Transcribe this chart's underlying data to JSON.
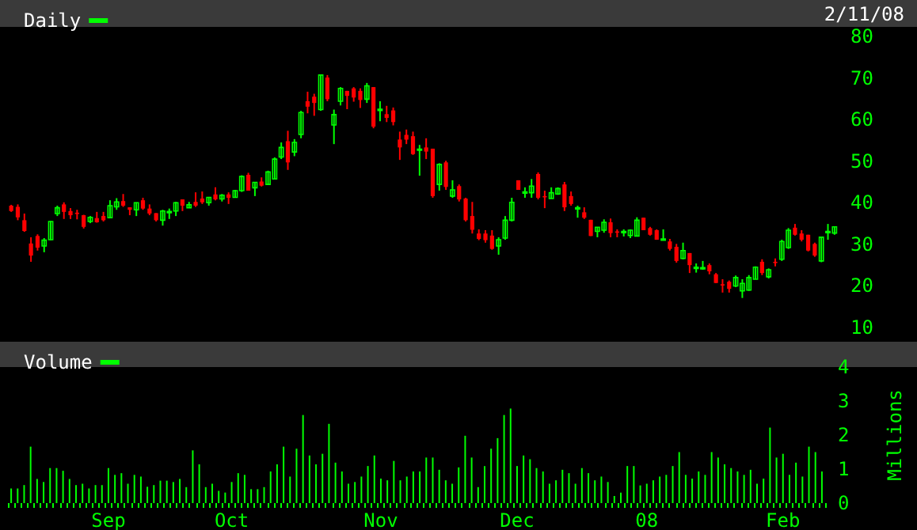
{
  "chart_data": [
    {
      "type": "candlestick",
      "legend": "top left",
      "tick_labels": "y",
      "ylim": [
        10,
        80
      ],
      "yticks": [
        10,
        20,
        30,
        40,
        50,
        60,
        70,
        80
      ],
      "annotations": [
        "2/11/08"
      ],
      "categories": [
        null,
        null,
        null,
        null,
        null,
        null,
        null,
        null,
        null,
        null,
        null,
        null,
        null,
        null,
        null,
        null,
        null,
        null,
        null,
        null,
        null,
        null,
        null,
        null,
        null,
        null,
        null,
        null,
        null,
        null,
        null,
        null,
        null,
        null,
        null,
        null,
        null,
        null,
        null,
        null,
        null,
        null,
        null,
        null,
        null,
        null,
        null,
        null,
        null,
        null,
        null,
        null,
        null,
        null,
        null,
        null,
        null,
        null,
        null,
        null,
        null,
        null,
        null,
        null,
        null,
        null,
        null,
        null,
        null,
        null,
        null,
        null,
        null,
        null,
        null,
        null,
        null,
        null,
        null,
        null,
        null,
        null,
        null,
        null,
        null,
        null,
        null,
        null,
        null,
        null,
        null,
        null,
        null,
        null,
        null,
        null,
        null,
        null,
        null,
        null,
        null,
        null,
        null,
        null,
        null,
        null,
        null,
        null,
        null,
        null,
        null,
        null,
        null,
        null,
        null,
        null,
        null,
        null,
        null,
        null,
        null,
        null,
        null,
        null,
        null,
        null
      ],
      "series": [
        {
          "name": "Daily",
          "color": "#00ff00",
          "colors": [
            "#ff0000",
            "#ff0000",
            "#ff0000",
            "#ff0000",
            "#ff0000",
            "#00ff00",
            "#00ff00",
            "#00ff00",
            "#ff0000",
            "#ff0000",
            "#ff0000",
            "#ff0000",
            "#00ff00",
            "#ff0000",
            "#ff0000",
            "#00ff00",
            "#00ff00",
            "#ff0000",
            "#ff0000",
            "#00ff00",
            "#ff0000",
            "#ff0000",
            "#ff0000",
            "#00ff00",
            "#00ff00",
            "#00ff00",
            "#ff0000",
            "#00ff00",
            "#ff0000",
            "#ff0000",
            "#00ff00",
            "#ff0000",
            "#00ff00",
            "#ff0000",
            "#00ff00",
            "#00ff00",
            "#ff0000",
            "#00ff00",
            "#ff0000",
            "#00ff00",
            "#00ff00",
            "#00ff00",
            "#ff0000",
            "#00ff00",
            "#00ff00",
            "#ff0000",
            "#ff0000",
            "#00ff00",
            "#ff0000",
            "#00ff00",
            "#00ff00",
            "#ff0000",
            "#ff0000",
            "#ff0000",
            "#00ff00",
            "#ff0000",
            "#00ff00",
            "#ff0000",
            "#ff0000",
            "#ff0000",
            "#ff0000",
            "#ff0000",
            "#00ff00",
            "#ff0000",
            "#ff0000",
            "#00ff00",
            "#ff0000",
            "#00ff00",
            "#ff0000",
            "#ff0000",
            "#ff0000",
            "#ff0000",
            "#ff0000",
            "#ff0000",
            "#00ff00",
            "#00ff00",
            "#00ff00",
            "#ff0000",
            "#00ff00",
            "#00ff00",
            "#ff0000",
            "#ff0000",
            "#00ff00",
            "#00ff00",
            "#ff0000",
            "#ff0000",
            "#00ff00",
            "#ff0000",
            "#ff0000",
            "#00ff00",
            "#00ff00",
            "#ff0000",
            "#ff0000",
            "#00ff00",
            "#00ff00",
            "#00ff00",
            "#ff0000",
            "#ff0000",
            "#ff0000",
            "#00ff00",
            "#ff0000",
            "#ff0000",
            "#00ff00",
            "#ff0000",
            "#00ff00",
            "#00ff00",
            "#ff0000",
            "#ff0000",
            "#ff0000",
            "#ff0000",
            "#00ff00",
            "#00ff00",
            "#00ff00",
            "#00ff00",
            "#ff0000",
            "#00ff00",
            "#ff0000",
            "#00ff00",
            "#00ff00",
            "#ff0000",
            "#ff0000",
            "#ff0000",
            "#ff0000",
            "#00ff00",
            "#00ff00",
            "#00ff00"
          ],
          "ohlc": [
            [
              39.3,
              39.5,
              37.8,
              38.0
            ],
            [
              39.0,
              39.6,
              35.8,
              36.5
            ],
            [
              35.8,
              37.4,
              33.0,
              33.2
            ],
            [
              30.2,
              31.7,
              25.8,
              27.3
            ],
            [
              32.0,
              32.4,
              28.5,
              29.2
            ],
            [
              29.6,
              31.5,
              28.1,
              31.0
            ],
            [
              31.1,
              35.6,
              31.0,
              35.5
            ],
            [
              37.4,
              39.3,
              36.8,
              38.8
            ],
            [
              39.6,
              40.1,
              36.1,
              37.8
            ],
            [
              38.0,
              38.7,
              36.1,
              37.0
            ],
            [
              37.6,
              38.3,
              36.0,
              37.3
            ],
            [
              37.0,
              37.1,
              33.8,
              34.2
            ],
            [
              35.5,
              36.8,
              35.1,
              36.5
            ],
            [
              36.3,
              37.8,
              35.2,
              35.3
            ],
            [
              36.8,
              37.8,
              35.5,
              35.8
            ],
            [
              36.4,
              40.6,
              36.3,
              39.3
            ],
            [
              39.0,
              41.1,
              38.3,
              40.2
            ],
            [
              40.4,
              42.1,
              39.0,
              39.3
            ],
            [
              38.9,
              38.9,
              37.0,
              38.3
            ],
            [
              38.3,
              40.1,
              36.8,
              40.0
            ],
            [
              40.6,
              41.2,
              38.3,
              38.6
            ],
            [
              38.6,
              39.6,
              37.0,
              37.4
            ],
            [
              37.5,
              37.5,
              35.5,
              35.8
            ],
            [
              35.8,
              38.3,
              34.5,
              38.0
            ],
            [
              37.6,
              38.6,
              36.1,
              37.9
            ],
            [
              38.0,
              40.2,
              36.8,
              40.0
            ],
            [
              40.8,
              40.8,
              38.0,
              39.3
            ],
            [
              38.8,
              40.2,
              38.8,
              39.5
            ],
            [
              40.2,
              42.5,
              39.0,
              39.3
            ],
            [
              41.0,
              42.7,
              39.7,
              40.1
            ],
            [
              40.0,
              41.4,
              39.3,
              41.3
            ],
            [
              42.0,
              43.7,
              40.6,
              40.8
            ],
            [
              40.9,
              42.1,
              40.3,
              41.8
            ],
            [
              42.0,
              42.5,
              39.7,
              41.2
            ],
            [
              41.3,
              43.1,
              41.3,
              42.9
            ],
            [
              42.9,
              46.6,
              42.6,
              46.3
            ],
            [
              46.7,
              47.2,
              42.9,
              42.9
            ],
            [
              43.6,
              44.9,
              41.6,
              44.9
            ],
            [
              45.1,
              46.1,
              43.9,
              44.1
            ],
            [
              44.4,
              47.7,
              44.4,
              47.4
            ],
            [
              45.7,
              50.9,
              45.6,
              50.5
            ],
            [
              51.0,
              54.5,
              50.5,
              53.3
            ],
            [
              54.8,
              57.3,
              47.9,
              49.7
            ],
            [
              52.2,
              55.3,
              51.2,
              54.5
            ],
            [
              56.4,
              62.1,
              55.5,
              61.7
            ],
            [
              64.4,
              66.7,
              61.5,
              63.1
            ],
            [
              65.5,
              66.2,
              60.9,
              64.0
            ],
            [
              62.4,
              70.7,
              62.1,
              70.7
            ],
            [
              70.1,
              70.7,
              64.4,
              64.9
            ],
            [
              58.7,
              62.4,
              54.1,
              61.2
            ],
            [
              64.4,
              67.8,
              63.4,
              67.5
            ],
            [
              66.9,
              66.9,
              62.5,
              65.7
            ],
            [
              67.5,
              67.8,
              64.3,
              65.3
            ],
            [
              66.9,
              67.5,
              62.8,
              64.7
            ],
            [
              64.9,
              68.8,
              64.0,
              68.1
            ],
            [
              67.8,
              67.8,
              57.9,
              58.3
            ],
            [
              62.3,
              64.4,
              59.6,
              62.5
            ],
            [
              61.3,
              63.3,
              59.4,
              60.4
            ],
            [
              62.2,
              62.9,
              58.6,
              59.4
            ],
            [
              55.2,
              57.1,
              50.3,
              53.3
            ],
            [
              56.3,
              57.6,
              54.1,
              55.2
            ],
            [
              56.0,
              57.1,
              51.5,
              51.7
            ],
            [
              52.7,
              53.9,
              46.5,
              52.9
            ],
            [
              53.3,
              55.5,
              50.5,
              52.3
            ],
            [
              53.0,
              53.0,
              41.2,
              41.6
            ],
            [
              44.4,
              49.5,
              42.9,
              49.2
            ],
            [
              49.7,
              50.1,
              43.1,
              43.8
            ],
            [
              41.6,
              45.4,
              41.2,
              43.1
            ],
            [
              44.0,
              44.4,
              40.3,
              40.8
            ],
            [
              41.0,
              41.2,
              35.5,
              35.8
            ],
            [
              36.8,
              40.2,
              32.6,
              33.5
            ],
            [
              32.6,
              33.6,
              31.0,
              31.3
            ],
            [
              32.6,
              33.4,
              30.4,
              31.0
            ],
            [
              32.1,
              33.4,
              28.7,
              28.9
            ],
            [
              29.6,
              31.7,
              27.5,
              31.1
            ],
            [
              31.5,
              36.8,
              31.1,
              35.8
            ],
            [
              35.8,
              41.2,
              35.5,
              40.1
            ],
            [
              45.4,
              45.4,
              43.1,
              43.1
            ],
            [
              42.4,
              43.7,
              41.2,
              42.6
            ],
            [
              42.4,
              45.7,
              41.2,
              44.0
            ],
            [
              46.9,
              47.3,
              40.8,
              41.2
            ],
            [
              41.6,
              42.9,
              38.7,
              41.4
            ],
            [
              41.0,
              43.7,
              41.0,
              42.4
            ],
            [
              42.1,
              43.7,
              41.9,
              43.4
            ],
            [
              44.4,
              45.0,
              38.0,
              38.9
            ],
            [
              41.6,
              42.7,
              39.3,
              39.7
            ],
            [
              38.6,
              39.3,
              36.4,
              38.8
            ],
            [
              37.7,
              38.9,
              36.1,
              36.4
            ],
            [
              35.9,
              35.9,
              32.0,
              32.0
            ],
            [
              33.1,
              34.1,
              31.7,
              34.1
            ],
            [
              33.4,
              36.0,
              32.8,
              35.3
            ],
            [
              35.3,
              36.2,
              31.7,
              32.7
            ],
            [
              33.1,
              33.6,
              31.7,
              32.9
            ],
            [
              32.9,
              33.6,
              31.9,
              33.1
            ],
            [
              32.1,
              33.6,
              31.5,
              33.4
            ],
            [
              32.0,
              36.5,
              32.0,
              35.8
            ],
            [
              36.4,
              36.4,
              33.4,
              33.4
            ],
            [
              33.9,
              34.2,
              32.1,
              32.3
            ],
            [
              33.4,
              33.6,
              31.1,
              31.1
            ],
            [
              31.2,
              33.6,
              31.1,
              31.3
            ],
            [
              30.7,
              31.3,
              28.5,
              28.9
            ],
            [
              29.4,
              30.1,
              25.6,
              26.0
            ],
            [
              26.6,
              30.4,
              26.4,
              28.5
            ],
            [
              27.9,
              27.9,
              23.1,
              25.0
            ],
            [
              24.4,
              25.4,
              23.2,
              24.5
            ],
            [
              24.3,
              26.0,
              23.9,
              24.4
            ],
            [
              25.0,
              25.4,
              22.8,
              23.5
            ],
            [
              22.8,
              23.1,
              20.7,
              20.7
            ],
            [
              20.4,
              21.6,
              18.4,
              20.3
            ],
            [
              21.0,
              21.3,
              18.4,
              19.3
            ],
            [
              20.0,
              22.5,
              19.7,
              22.0
            ],
            [
              18.8,
              21.6,
              17.1,
              20.6
            ],
            [
              19.0,
              22.6,
              18.8,
              22.0
            ],
            [
              21.6,
              24.7,
              21.6,
              24.5
            ],
            [
              25.8,
              26.4,
              22.6,
              23.1
            ],
            [
              22.2,
              24.2,
              21.8,
              23.9
            ],
            [
              25.8,
              26.6,
              24.7,
              25.7
            ],
            [
              26.4,
              31.1,
              26.0,
              30.7
            ],
            [
              29.2,
              33.9,
              28.9,
              33.4
            ],
            [
              34.0,
              34.9,
              32.1,
              32.3
            ],
            [
              32.6,
              33.4,
              30.7,
              31.1
            ],
            [
              32.3,
              32.3,
              28.3,
              28.5
            ],
            [
              30.1,
              30.4,
              27.0,
              27.3
            ],
            [
              26.0,
              31.7,
              25.7,
              31.7
            ],
            [
              33.0,
              34.9,
              31.1,
              33.1
            ],
            [
              32.7,
              34.2,
              32.3,
              34.2
            ]
          ]
        }
      ]
    },
    {
      "type": "bar",
      "legend": "top left",
      "ylabel": "Millions",
      "ylim": [
        0,
        4
      ],
      "yticks": [
        0,
        1,
        2,
        3,
        4
      ],
      "categories": [
        null,
        null,
        null,
        null,
        null,
        null,
        null,
        null,
        null,
        null,
        null,
        null,
        null,
        null,
        null,
        "Sep",
        null,
        null,
        null,
        null,
        null,
        null,
        null,
        null,
        null,
        null,
        null,
        null,
        null,
        null,
        null,
        null,
        null,
        null,
        "Oct",
        null,
        null,
        null,
        null,
        null,
        null,
        null,
        null,
        null,
        null,
        null,
        null,
        null,
        null,
        null,
        null,
        null,
        null,
        null,
        null,
        null,
        null,
        "Nov",
        null,
        null,
        null,
        null,
        null,
        null,
        null,
        null,
        null,
        null,
        null,
        null,
        null,
        null,
        null,
        null,
        null,
        null,
        null,
        null,
        "Dec",
        null,
        null,
        null,
        null,
        null,
        null,
        null,
        null,
        null,
        null,
        null,
        null,
        null,
        null,
        null,
        null,
        null,
        null,
        null,
        "08",
        null,
        null,
        null,
        null,
        null,
        null,
        null,
        null,
        null,
        null,
        null,
        null,
        null,
        null,
        null,
        null,
        null,
        null,
        null,
        null,
        "Feb",
        null,
        null,
        null,
        null,
        null,
        null
      ],
      "series": [
        {
          "name": "Volume",
          "color": "#00ff00",
          "values": [
            0.43,
            0.43,
            0.53,
            1.66,
            0.71,
            0.62,
            1.03,
            1.03,
            0.95,
            0.71,
            0.53,
            0.57,
            0.43,
            0.53,
            0.53,
            1.03,
            0.83,
            0.88,
            0.57,
            0.83,
            0.78,
            0.48,
            0.53,
            0.66,
            0.66,
            0.62,
            0.71,
            0.47,
            1.55,
            1.14,
            0.47,
            0.57,
            0.36,
            0.31,
            0.62,
            0.88,
            0.83,
            0.41,
            0.41,
            0.47,
            0.93,
            1.14,
            1.66,
            0.78,
            1.6,
            2.59,
            1.4,
            1.14,
            1.45,
            2.33,
            1.19,
            0.93,
            0.57,
            0.62,
            0.78,
            1.09,
            1.4,
            0.72,
            0.67,
            1.24,
            0.67,
            0.78,
            0.93,
            0.93,
            1.34,
            1.34,
            0.98,
            0.67,
            0.57,
            1.05,
            1.98,
            1.34,
            0.47,
            1.09,
            1.6,
            1.91,
            2.59,
            2.78,
            1.09,
            1.4,
            1.29,
            1.03,
            0.93,
            0.57,
            0.67,
            0.98,
            0.88,
            0.57,
            1.03,
            0.88,
            0.67,
            0.78,
            0.62,
            0.21,
            0.31,
            1.09,
            1.09,
            0.52,
            0.57,
            0.67,
            0.78,
            0.83,
            1.09,
            1.5,
            0.83,
            0.72,
            0.93,
            0.83,
            1.5,
            1.34,
            1.14,
            1.03,
            0.93,
            0.83,
            0.98,
            0.57,
            0.72,
            2.22,
            1.34,
            1.45,
            0.83,
            1.19,
            0.78,
            1.66,
            1.5,
            0.93
          ]
        }
      ]
    }
  ]
}
